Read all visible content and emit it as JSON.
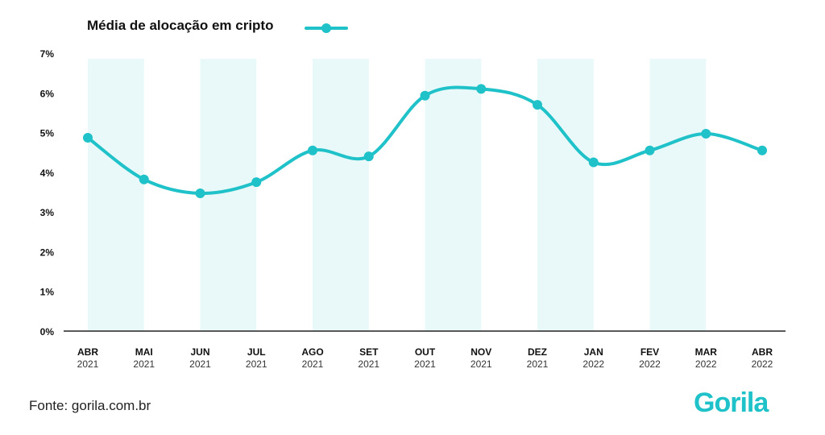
{
  "legend": {
    "label": "Média de alocação em cripto"
  },
  "source": "Fonte: gorila.com.br",
  "logo": {
    "text": "Gorila"
  },
  "colors": {
    "line": "#1fc2c8",
    "band": "#e9f8f9",
    "axis": "#222222",
    "text": "#111111"
  },
  "chart_data": {
    "type": "line",
    "title": "",
    "xlabel": "",
    "ylabel": "",
    "ylim": [
      0,
      7
    ],
    "yticks": [
      "0%",
      "1%",
      "2%",
      "3%",
      "4%",
      "5%",
      "6%",
      "7%"
    ],
    "categories": [
      {
        "month": "ABR",
        "year": "2021"
      },
      {
        "month": "MAI",
        "year": "2021"
      },
      {
        "month": "JUN",
        "year": "2021"
      },
      {
        "month": "JUL",
        "year": "2021"
      },
      {
        "month": "AGO",
        "year": "2021"
      },
      {
        "month": "SET",
        "year": "2021"
      },
      {
        "month": "OUT",
        "year": "2021"
      },
      {
        "month": "NOV",
        "year": "2021"
      },
      {
        "month": "DEZ",
        "year": "2021"
      },
      {
        "month": "JAN",
        "year": "2022"
      },
      {
        "month": "FEV",
        "year": "2022"
      },
      {
        "month": "MAR",
        "year": "2022"
      },
      {
        "month": "ABR",
        "year": "2022"
      }
    ],
    "series": [
      {
        "name": "Média de alocação em cripto",
        "values": [
          4.87,
          3.82,
          3.47,
          3.75,
          4.55,
          4.4,
          5.93,
          6.1,
          5.7,
          4.25,
          4.55,
          4.97,
          4.55
        ]
      }
    ],
    "shaded_bands": [
      [
        "ABR",
        "MAI"
      ],
      [
        "JUN",
        "JUL"
      ],
      [
        "AGO",
        "SET"
      ],
      [
        "OUT",
        "NOV"
      ],
      [
        "DEZ",
        "JAN"
      ],
      [
        "FEV",
        "MAR"
      ]
    ],
    "grid": false,
    "legend_position": "top-left"
  }
}
